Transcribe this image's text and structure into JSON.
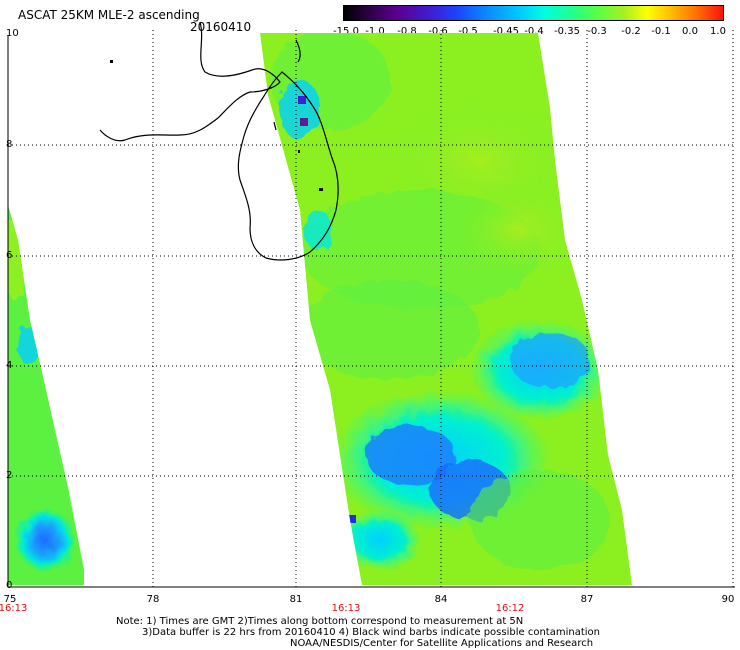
{
  "header": {
    "title": "ASCAT 25KM MLE-2 ascending",
    "date": "20160410"
  },
  "colorbar": {
    "labels": [
      "-15.0",
      "-1.0",
      "-0.8",
      "-0.6",
      "-0.5",
      "-0.45",
      "-0.4",
      "-0.35",
      "-0.3",
      "-0.2",
      "-0.1",
      "0.0",
      "1.0"
    ]
  },
  "axes": {
    "y_ticks": [
      "10",
      "8",
      "6",
      "4",
      "2",
      "0"
    ],
    "x_ticks": [
      "75",
      "78",
      "81",
      "84",
      "87",
      "90"
    ]
  },
  "pass_times": [
    "16:13",
    "16:13",
    "16:12"
  ],
  "notes": {
    "line1": "Note: 1) Times are GMT 2)Times along bottom correspond to measurement at 5N",
    "line2": "3)Data buffer is 22 hrs from 20160410 4) Black wind barbs indicate possible contamination",
    "line3": "NOAA/NESDIS/Center for Satellite Applications and Research"
  },
  "colors": {
    "land_outline": "#000000",
    "grid": "#000000",
    "time_label": "#e01010"
  }
}
